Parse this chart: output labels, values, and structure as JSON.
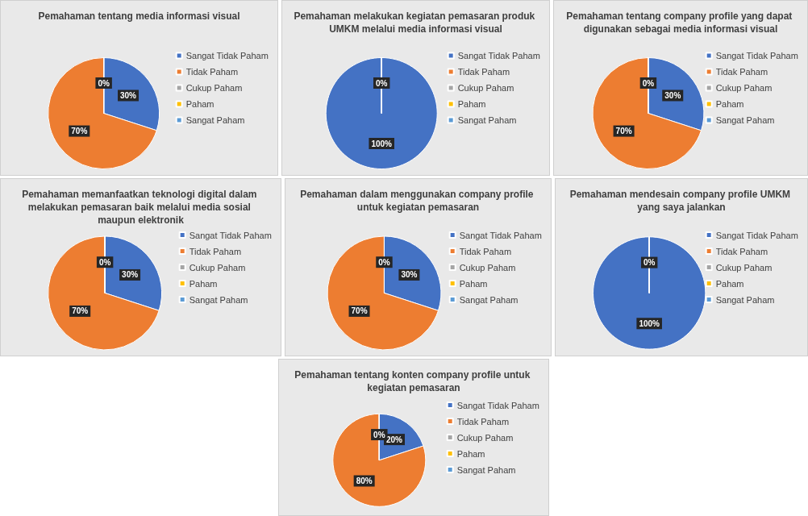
{
  "chart_data": [
    {
      "type": "pie",
      "title": "Pemahaman tentang media informasi visual",
      "categories": [
        "Sangat Tidak Paham",
        "Tidak Paham",
        "Cukup Paham",
        "Paham",
        "Sangat Paham"
      ],
      "values": [
        30,
        70,
        0,
        0,
        0
      ],
      "colors": [
        "#4472c4",
        "#ed7d31",
        "#a5a5a5",
        "#ffc000",
        "#5b9bd5"
      ],
      "value_labels": [
        "30%",
        "70%",
        "0%",
        null,
        null
      ],
      "legend": "right"
    },
    {
      "type": "pie",
      "title": "Pemahaman melakukan kegiatan pemasaran produk UMKM melalui media informasi visual",
      "categories": [
        "Sangat Tidak Paham",
        "Tidak Paham",
        "Cukup Paham",
        "Paham",
        "Sangat Paham"
      ],
      "values": [
        100,
        0,
        0,
        0,
        0
      ],
      "colors": [
        "#4472c4",
        "#ed7d31",
        "#a5a5a5",
        "#ffc000",
        "#5b9bd5"
      ],
      "value_labels": [
        "100%",
        "0%",
        null,
        null,
        null
      ],
      "legend": "right"
    },
    {
      "type": "pie",
      "title": "Pemahaman tentang company profile yang dapat digunakan sebagai media informasi visual",
      "categories": [
        "Sangat Tidak Paham",
        "Tidak Paham",
        "Cukup Paham",
        "Paham",
        "Sangat Paham"
      ],
      "values": [
        30,
        70,
        0,
        0,
        0
      ],
      "colors": [
        "#4472c4",
        "#ed7d31",
        "#a5a5a5",
        "#ffc000",
        "#5b9bd5"
      ],
      "value_labels": [
        "30%",
        "70%",
        "0%",
        null,
        null
      ],
      "legend": "right"
    },
    {
      "type": "pie",
      "title": "Pemahaman memanfaatkan teknologi digital dalam melakukan pemasaran baik melalui media sosial maupun elektronik",
      "categories": [
        "Sangat Tidak Paham",
        "Tidak Paham",
        "Cukup Paham",
        "Paham",
        "Sangat Paham"
      ],
      "values": [
        30,
        70,
        0,
        0,
        0
      ],
      "colors": [
        "#4472c4",
        "#ed7d31",
        "#a5a5a5",
        "#ffc000",
        "#5b9bd5"
      ],
      "value_labels": [
        "30%",
        "70%",
        "0%",
        null,
        null
      ],
      "legend": "right"
    },
    {
      "type": "pie",
      "title": "Pemahaman dalam menggunakan company profile untuk kegiatan pemasaran",
      "categories": [
        "Sangat Tidak Paham",
        "Tidak Paham",
        "Cukup Paham",
        "Paham",
        "Sangat Paham"
      ],
      "values": [
        30,
        70,
        0,
        0,
        0
      ],
      "colors": [
        "#4472c4",
        "#ed7d31",
        "#a5a5a5",
        "#ffc000",
        "#5b9bd5"
      ],
      "value_labels": [
        "30%",
        "70%",
        "0%",
        null,
        null
      ],
      "legend": "right"
    },
    {
      "type": "pie",
      "title": "Pemahaman mendesain company profile UMKM yang saya jalankan",
      "categories": [
        "Sangat Tidak Paham",
        "Tidak Paham",
        "Cukup Paham",
        "Paham",
        "Sangat Paham"
      ],
      "values": [
        100,
        0,
        0,
        0,
        0
      ],
      "colors": [
        "#4472c4",
        "#ed7d31",
        "#a5a5a5",
        "#ffc000",
        "#5b9bd5"
      ],
      "value_labels": [
        "100%",
        "0%",
        null,
        null,
        null
      ],
      "legend": "right"
    },
    {
      "type": "pie",
      "title": "Pemahaman tentang konten company profile untuk kegiatan pemasaran",
      "categories": [
        "Sangat Tidak Paham",
        "Tidak Paham",
        "Cukup Paham",
        "Paham",
        "Sangat Paham"
      ],
      "values": [
        20,
        80,
        0,
        0,
        0
      ],
      "colors": [
        "#4472c4",
        "#ed7d31",
        "#a5a5a5",
        "#ffc000",
        "#5b9bd5"
      ],
      "value_labels": [
        "20%",
        "80%",
        "0%",
        null,
        null
      ],
      "legend": "right"
    }
  ]
}
